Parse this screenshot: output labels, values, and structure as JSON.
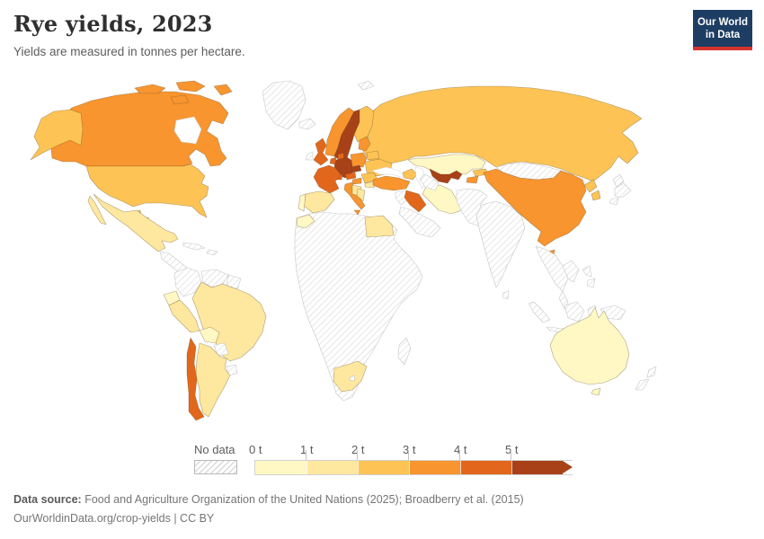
{
  "header": {
    "title": "Rye yields, 2023",
    "subtitle": "Yields are measured in tonnes per hectare.",
    "logo": {
      "line1": "Our World",
      "line2": "in Data"
    }
  },
  "chart_data": {
    "type": "choropleth",
    "title": "Rye yields, 2023",
    "unit": "tonnes per hectare",
    "year": "2023",
    "no_data_label": "No data",
    "legend_ticks": [
      "0 t",
      "1 t",
      "2 t",
      "3 t",
      "4 t",
      "5 t"
    ],
    "bin_keys": [
      "0-1",
      "1-2",
      "2-3",
      "3-4",
      "4-5",
      "5+"
    ],
    "bin_colors": {
      "0-1": "#FFF8C5",
      "1-2": "#FEE79E",
      "2-3": "#FDC455",
      "3-4": "#F8952F",
      "4-5": "#E2671C",
      "5+": "#A84118"
    },
    "style": {
      "border_stroke": "rgba(100,75,35,0.5)",
      "no_data_stroke": "#c6c6c6"
    },
    "regions": {
      "greenland": "no-data",
      "canada": "3-4",
      "alaska": "2-3",
      "usa": "2-3",
      "hawaii": "2-3",
      "mexico": "1-2",
      "central-america": "no-data",
      "cuba": "no-data",
      "hispaniola": "no-data",
      "colombia": "no-data",
      "venezuela": "no-data",
      "guyanas": "no-data",
      "ecuador": "0-1",
      "peru": "1-2",
      "brazil": "1-2",
      "bolivia": "0-1",
      "paraguay": "no-data",
      "uruguay": "no-data",
      "argentina": "1-2",
      "chile": "4-5",
      "iceland": "no-data",
      "ireland": "no-data",
      "uk": "4-5",
      "norway": "3-4",
      "sweden": "5+",
      "finland": "2-3",
      "denmark": "4-5",
      "benelux": "4-5",
      "germany": "5+",
      "france": "4-5",
      "spain": "1-2",
      "portugal": "0-1",
      "italy": "3-4",
      "switzerland": "4-5",
      "austria": "4-5",
      "czechia": "5+",
      "poland": "3-4",
      "baltics": "3-4",
      "belarus": "2-3",
      "ukraine": "2-3",
      "romania": "2-3",
      "hungary": "3-4",
      "balkans": "1-2",
      "bulgaria": "1-2",
      "greece": "1-2",
      "russia": "2-3",
      "svalbard": "no-data",
      "turkey": "3-4",
      "levant": "no-data",
      "iraq": "4-5",
      "iran": "0-1",
      "arabia": "no-data",
      "kazakhstan": "0-1",
      "uzbekistan": "5+",
      "turkmenistan": "no-data",
      "kyrgyzstan": "2-3",
      "tajikistan": "3-4",
      "caucasus": "2-3",
      "afghanistan-pakistan": "no-data",
      "india": "no-data",
      "sri-lanka": "no-data",
      "china": "3-4",
      "mongolia": "no-data",
      "north-korea": "2-3",
      "south-korea": "2-3",
      "japan": "no-data",
      "mainland-se-asia": "no-data",
      "indonesia": "no-data",
      "philippines": "no-data",
      "new-guinea": "no-data",
      "africa": "no-data",
      "morocco": "0-1",
      "egypt": "1-2",
      "south-africa": "1-2",
      "madagascar": "no-data",
      "australia": "0-1",
      "tasmania": "0-1",
      "new-zealand": "no-data"
    }
  },
  "footer": {
    "source_label": "Data source:",
    "source_text": " Food and Agriculture Organization of the United Nations (2025); Broadberry et al. (2015)",
    "link": "OurWorldinData.org/crop-yields",
    "license": " | CC BY"
  }
}
